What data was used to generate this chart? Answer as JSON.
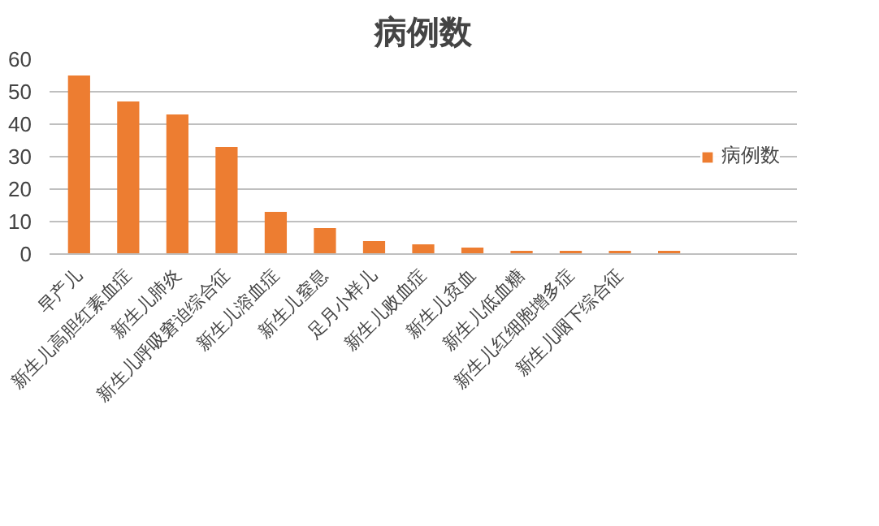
{
  "chart_data": {
    "type": "bar",
    "title": "病例数",
    "categories": [
      "早产儿",
      "新生儿高胆红素血症",
      "新生儿肺炎",
      "新生儿呼吸窘迫综合征",
      "新生儿溶血症",
      "新生儿窒息",
      "足月小样儿",
      "新生儿败血症",
      "新生儿贫血",
      "新生儿低血糖",
      "新生儿红细胞增多症",
      "新生儿咽下综合征",
      null
    ],
    "series": [
      {
        "name": "病例数",
        "color": "#ed7d31",
        "values": [
          55,
          47,
          43,
          33,
          13,
          8,
          4,
          3,
          2,
          1,
          1,
          1,
          1
        ]
      }
    ],
    "ylim": [
      0,
      60
    ],
    "yticks": [
      0,
      10,
      20,
      30,
      40,
      50,
      60
    ],
    "grid": "y",
    "legend": "right"
  }
}
